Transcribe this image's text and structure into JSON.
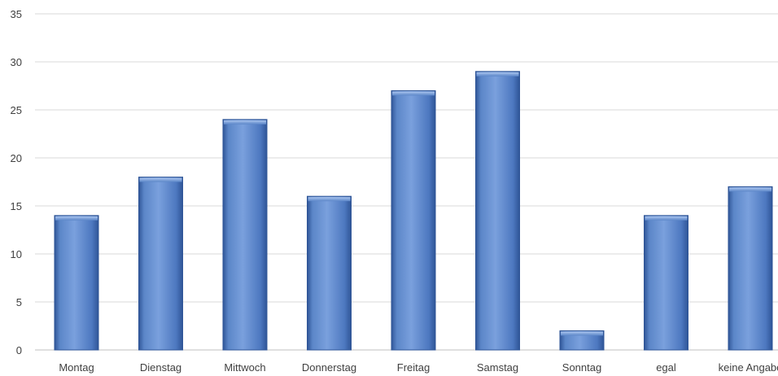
{
  "chart_data": {
    "type": "bar",
    "title": "",
    "xlabel": "",
    "ylabel": "",
    "categories": [
      "Montag",
      "Dienstag",
      "Mittwoch",
      "Donnerstag",
      "Freitag",
      "Samstag",
      "Sonntag",
      "egal",
      "keine Angabe"
    ],
    "values": [
      14,
      18,
      24,
      16,
      27,
      29,
      2,
      14,
      17
    ],
    "ylim": [
      0,
      35
    ],
    "yticks": [
      0,
      5,
      10,
      15,
      20,
      25,
      30,
      35
    ],
    "grid": true,
    "legend": "none",
    "colors": {
      "bar_light": "#8eb0e3",
      "bar_mid": "#5b86c8",
      "bar_dark": "#2f5597",
      "grid": "#d9d9d9",
      "text": "#404040"
    }
  }
}
